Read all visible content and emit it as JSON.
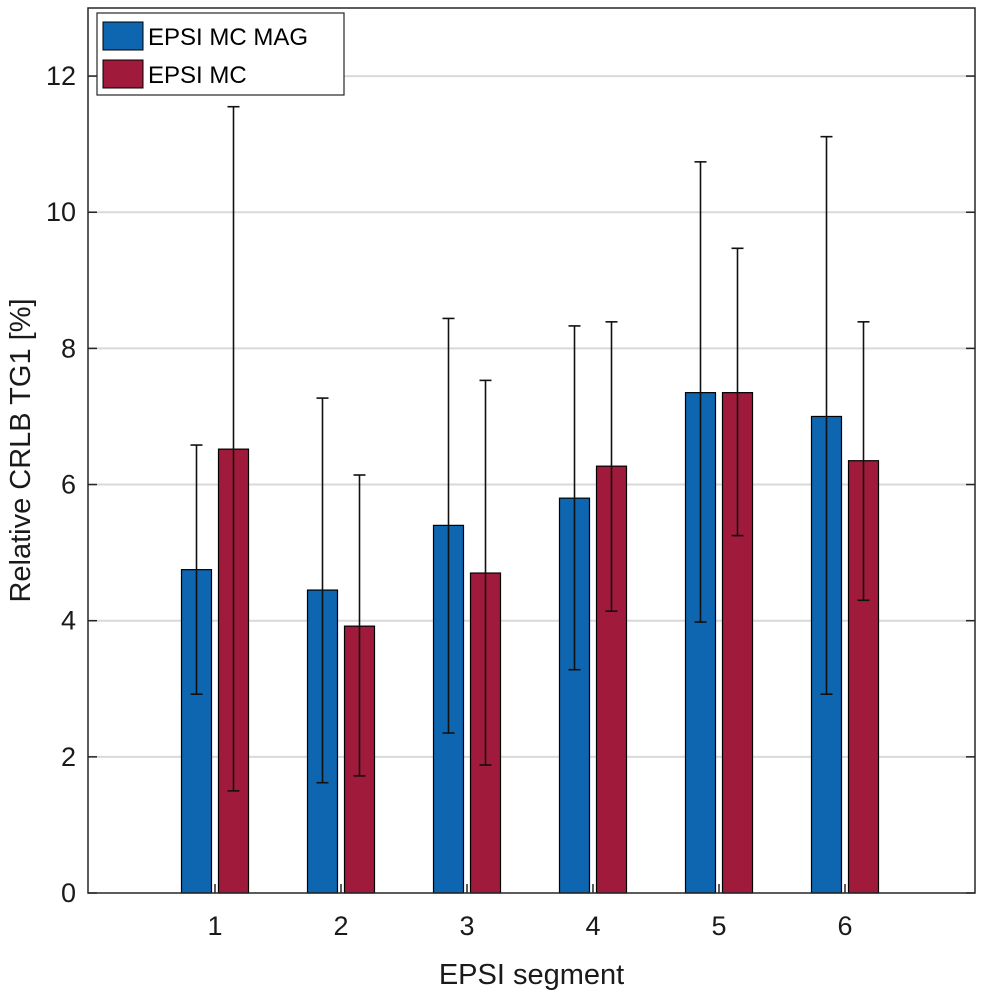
{
  "chart_data": {
    "type": "bar",
    "categories": [
      "1",
      "2",
      "3",
      "4",
      "5",
      "6"
    ],
    "series": [
      {
        "name": "EPSI MC MAG",
        "color": "#0e65b0",
        "values": [
          4.75,
          4.45,
          5.4,
          5.8,
          7.35,
          7.0
        ],
        "error_low": [
          2.92,
          1.62,
          2.35,
          3.28,
          3.98,
          2.92
        ],
        "error_high": [
          6.58,
          7.27,
          8.44,
          8.33,
          10.74,
          11.11
        ]
      },
      {
        "name": "EPSI MC",
        "color": "#a01a3c",
        "values": [
          6.52,
          3.92,
          4.7,
          6.27,
          7.35,
          6.35
        ],
        "error_low": [
          1.5,
          1.72,
          1.88,
          4.14,
          5.25,
          4.3
        ],
        "error_high": [
          11.55,
          6.14,
          7.53,
          8.39,
          9.47,
          8.39
        ]
      }
    ],
    "xlabel": "EPSI segment",
    "ylabel": "Relative CRLB TG1 [%]",
    "ylim": [
      0,
      13
    ],
    "yticks": [
      0,
      2,
      4,
      6,
      8,
      10,
      12
    ],
    "grid": true,
    "legend_position": "top-left"
  }
}
